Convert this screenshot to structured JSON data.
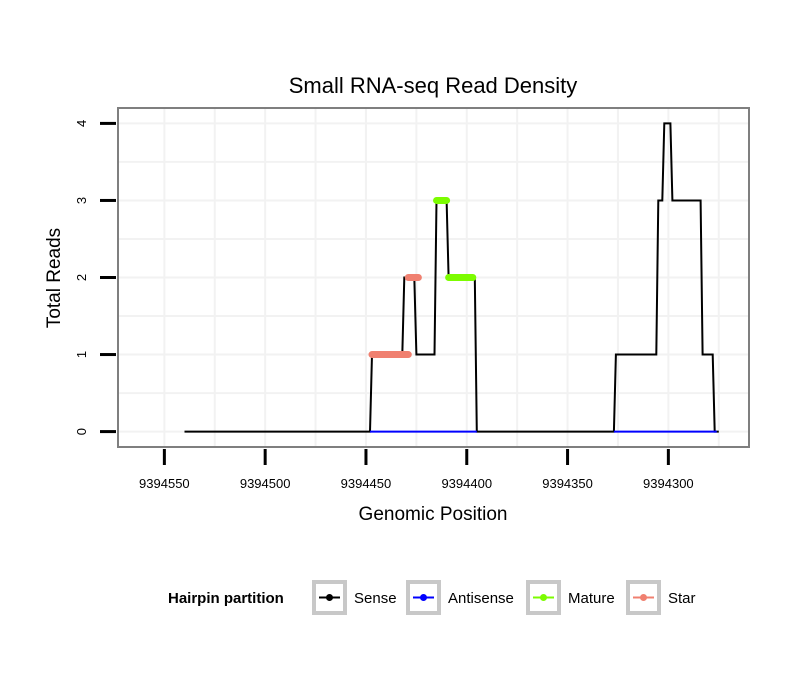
{
  "chart_data": {
    "type": "line",
    "title": "Small RNA-seq Read Density",
    "xlabel": "Genomic Position",
    "ylabel": "Total Reads",
    "x_reversed": true,
    "xlim": [
      9394573,
      9394260
    ],
    "ylim": [
      -0.2,
      4.2
    ],
    "x_ticks": [
      9394550,
      9394500,
      9394450,
      9394400,
      9394350,
      9394300
    ],
    "x_tick_labels": [
      "9394550",
      "9394500",
      "9394450",
      "9394400",
      "9394350",
      "9394300"
    ],
    "y_ticks": [
      0,
      1,
      2,
      3,
      4
    ],
    "y_tick_labels": [
      "0",
      "1",
      "2",
      "3",
      "4"
    ],
    "grid": true,
    "legend": {
      "title": "Hairpin partition",
      "position": "bottom",
      "entries": [
        {
          "name": "Sense",
          "color": "#000000"
        },
        {
          "name": "Antisense",
          "color": "#0000ff"
        },
        {
          "name": "Mature",
          "color": "#7cfc00"
        },
        {
          "name": "Star",
          "color": "#f08070"
        }
      ]
    },
    "series": [
      {
        "name": "Sense",
        "color": "#000000",
        "x": [
          9394540,
          9394448,
          9394447,
          9394432,
          9394431,
          9394426,
          9394425,
          9394416,
          9394415,
          9394410,
          9394409,
          9394396,
          9394395,
          9394327,
          9394326,
          9394306,
          9394305,
          9394303,
          9394302,
          9394299,
          9394298,
          9394284,
          9394283,
          9394278,
          9394277,
          9394275
        ],
        "values": [
          0,
          0,
          1,
          1,
          2,
          2,
          1,
          1,
          3,
          3,
          2,
          2,
          0,
          0,
          1,
          1,
          3,
          3,
          4,
          4,
          3,
          3,
          1,
          1,
          0,
          0
        ]
      },
      {
        "name": "Antisense",
        "color": "#0000ff",
        "x": [
          9394448,
          9394395,
          9394327,
          9394276
        ],
        "values": [
          0,
          0,
          0,
          0
        ],
        "segments": [
          [
            0,
            1
          ],
          [
            2,
            3
          ]
        ]
      },
      {
        "name": "Mature",
        "color": "#7cfc00",
        "x": [
          9394415,
          9394410,
          9394409,
          9394397
        ],
        "values": [
          3,
          3,
          2,
          2
        ],
        "segments": [
          [
            0,
            1
          ],
          [
            2,
            3
          ]
        ]
      },
      {
        "name": "Star",
        "color": "#f08070",
        "x": [
          9394447,
          9394429,
          9394429,
          9394424
        ],
        "values": [
          1,
          1,
          2,
          2
        ],
        "segments": [
          [
            0,
            1
          ],
          [
            2,
            3
          ]
        ]
      }
    ]
  }
}
